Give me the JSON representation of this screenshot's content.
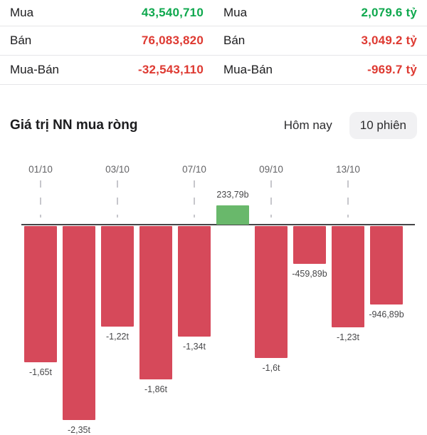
{
  "summary": {
    "rows": [
      {
        "label_left": "Mua",
        "value_left": "43,540,710",
        "tone_left": "green",
        "label_right": "Mua",
        "value_right": "2,079.6 tỷ",
        "tone_right": "green"
      },
      {
        "label_left": "Bán",
        "value_left": "76,083,820",
        "tone_left": "red",
        "label_right": "Bán",
        "value_right": "3,049.2 tỷ",
        "tone_right": "red"
      },
      {
        "label_left": "Mua-Bán",
        "value_left": "-32,543,110",
        "tone_left": "red",
        "label_right": "Mua-Bán",
        "value_right": "-969.7 tỷ",
        "tone_right": "red"
      }
    ]
  },
  "section": {
    "title": "Giá trị NN mua ròng",
    "tab_today": "Hôm nay",
    "tab_10_sessions": "10 phiên",
    "selected_tab": "10 phiên"
  },
  "colors": {
    "value_green": "#0fa84e",
    "value_red": "#de3a32",
    "bar_negative": "#d6495a",
    "bar_positive": "#69b86b",
    "text_dark": "#1c1c1e",
    "axis_gray": "#636366"
  },
  "chart_data": {
    "type": "bar",
    "title": "Giá trị NN mua ròng",
    "x_tick_labels": [
      "01/10",
      "",
      "03/10",
      "",
      "07/10",
      "",
      "09/10",
      "",
      "13/10",
      ""
    ],
    "values_billion": [
      -1650,
      -2350,
      -1220,
      -1860,
      -1340,
      233.79,
      -1600,
      -459.89,
      -1230,
      -946.89
    ],
    "bar_labels": [
      "-1,65t",
      "-2,35t",
      "-1,22t",
      "-1,86t",
      "-1,34t",
      "233,79b",
      "-1,6t",
      "-459,89b",
      "-1,23t",
      "-946,89b"
    ],
    "positive_color": "#69b86b",
    "negative_color": "#d6495a",
    "baseline": 0,
    "grid": false,
    "legend": "none"
  }
}
